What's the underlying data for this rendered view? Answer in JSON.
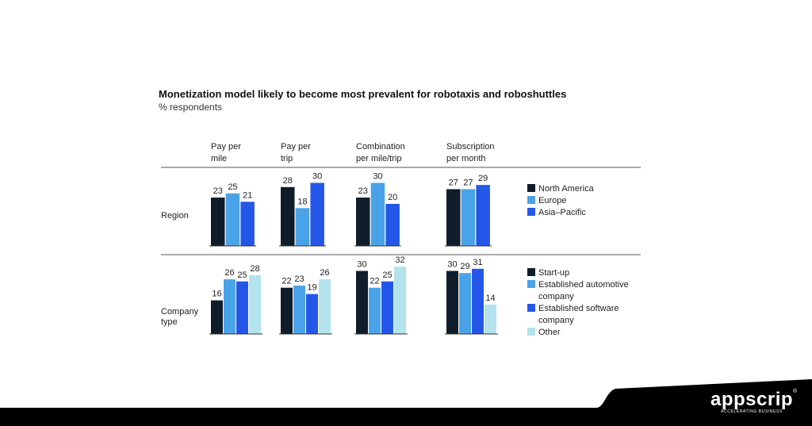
{
  "colors": {
    "north_america": "#0f1d2b",
    "europe": "#4aa3e8",
    "asia_pacific": "#2457e8",
    "startup": "#0f1d2b",
    "established_auto": "#4aa3e8",
    "established_software": "#2457e8",
    "other": "#b3e3ed",
    "footer": "#000000"
  },
  "brand": {
    "name": "appscrip",
    "registered": "®",
    "tagline": "ACCELERATING BUSINESS"
  },
  "chart_data": {
    "type": "bar",
    "title": "Monetization model likely to become most prevalent for robotaxis and roboshuttles",
    "subtitle": "% respondents",
    "ylim": [
      0,
      35
    ],
    "categories": [
      "Pay per mile",
      "Pay per trip",
      "Combination per mile/trip",
      "Subscription per month"
    ],
    "category_lines": [
      [
        "Pay per",
        "mile"
      ],
      [
        "Pay per",
        "trip"
      ],
      [
        "Combination",
        "per mile/trip"
      ],
      [
        "Subscription",
        "per month"
      ]
    ],
    "groups": [
      {
        "name": "Region",
        "label_lines": [
          "Region"
        ],
        "series": [
          {
            "name": "North America",
            "legend_lines": [
              "North America"
            ],
            "color_key": "north_america",
            "values": [
              23,
              28,
              23,
              27
            ]
          },
          {
            "name": "Europe",
            "legend_lines": [
              "Europe"
            ],
            "color_key": "europe",
            "values": [
              25,
              18,
              30,
              27
            ]
          },
          {
            "name": "Asia–Pacific",
            "legend_lines": [
              "Asia–Pacific"
            ],
            "color_key": "asia_pacific",
            "values": [
              21,
              30,
              20,
              29
            ]
          }
        ]
      },
      {
        "name": "Company type",
        "label_lines": [
          "Company",
          "type"
        ],
        "series": [
          {
            "name": "Start-up",
            "legend_lines": [
              "Start-up"
            ],
            "color_key": "startup",
            "values": [
              16,
              22,
              30,
              30
            ]
          },
          {
            "name": "Established automotive company",
            "legend_lines": [
              "Established automotive",
              "company"
            ],
            "color_key": "established_auto",
            "values": [
              26,
              23,
              22,
              29
            ]
          },
          {
            "name": "Established software company",
            "legend_lines": [
              "Established software",
              "company"
            ],
            "color_key": "established_software",
            "values": [
              25,
              19,
              25,
              31
            ]
          },
          {
            "name": "Other",
            "legend_lines": [
              "Other"
            ],
            "color_key": "other",
            "values": [
              28,
              26,
              32,
              14
            ]
          }
        ]
      }
    ]
  }
}
